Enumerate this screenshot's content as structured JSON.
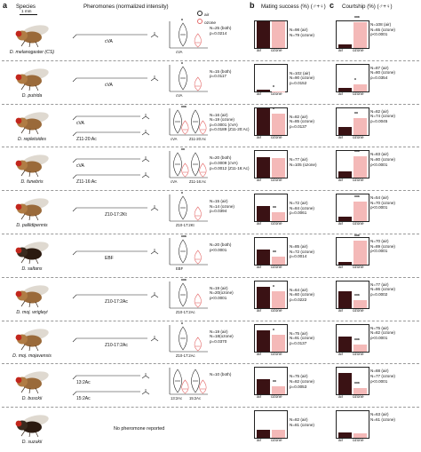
{
  "header": {
    "label_a": "a",
    "label_b": "b",
    "label_c": "c",
    "species_col": "Species",
    "pheromone_col": "Pheromones (normalized intensity)",
    "mating_col": "Mating success (%) (♂+♀)",
    "courtship_col": "Courtship (%) (♂+♀)",
    "scale_bar": "1 mm",
    "legend_air": "air",
    "legend_ozone": "ozone"
  },
  "colors": {
    "air": "#3a1214",
    "ozone": "#f4b9b8",
    "ozone_stroke": "#e46a6a"
  },
  "x_labels": {
    "air": "air",
    "ozone": "ozone"
  },
  "rows": [
    {
      "species": "D. melanogaster (CS)",
      "compounds": [
        "cVA"
      ],
      "violin_labels": [
        "cVA"
      ],
      "ph_stats": [
        "N=25 (both)",
        "p=0.0214"
      ],
      "ph_star": "*",
      "mating_stats": [
        "N=98 (air)",
        "N=79 (ozone)"
      ],
      "mating_star": "",
      "courtship_stats": [
        "N=108 (air)",
        "N=65 (ozone)",
        "p<0.0001"
      ],
      "courtship_star": "***",
      "mating": [
        100,
        100
      ],
      "courtship": [
        15,
        96
      ]
    },
    {
      "species": "D. putrida",
      "compounds": [
        "cVA"
      ],
      "violin_labels": [
        "cVA"
      ],
      "ph_stats": [
        "N=15 (both)",
        "p=0.0117"
      ],
      "ph_star": "*",
      "mating_stats": [
        "N=102 (air)",
        "N=90 (ozone)",
        "p=0.0152"
      ],
      "mating_star": "*",
      "courtship_stats": [
        "N=87 (air)",
        "N=80 (ozone)",
        "p=0.0354"
      ],
      "courtship_star": "*",
      "mating": [
        5,
        1
      ],
      "courtship": [
        12,
        25
      ]
    },
    {
      "species": "D. repletoides",
      "compounds": [
        "cVA",
        "Z11-20:Ac"
      ],
      "violin_labels": [
        "cVA",
        "Z11-20:Ac"
      ],
      "ph_stats": [
        "N=16 (air)",
        "N=19 (ozone)",
        "p=0.0001 (cVA)",
        "p=0.0189 (Z11-20:Ac)"
      ],
      "ph_star": "***",
      "mating_stats": [
        "N=82 (air)",
        "N=85 (ozone)",
        "p=0.0137"
      ],
      "mating_star": "*",
      "courtship_stats": [
        "N=82 (air)",
        "N=74 (ozone)",
        "p=0.0045"
      ],
      "courtship_star": "**",
      "mating": [
        98,
        80
      ],
      "courtship": [
        30,
        62
      ]
    },
    {
      "species": "D. funebris",
      "compounds": [
        "cVA",
        "Z11-16:Ac"
      ],
      "violin_labels": [
        "cVA",
        "Z11-16:Ac"
      ],
      "ph_stats": [
        "N=20 (both)",
        "p=0.0009 (cVA)",
        "p=0.0012 (Z11-16:Ac)"
      ],
      "ph_star": "**",
      "mating_stats": [
        "N=77 (air)",
        "N=105 (ozone)"
      ],
      "mating_star": "",
      "courtship_stats": [
        "N=83 (air)",
        "N=80 (ozone)",
        "p<0.0001"
      ],
      "courtship_star": "***",
      "mating": [
        78,
        76
      ],
      "courtship": [
        25,
        80
      ]
    },
    {
      "species": "D. pallidipennis",
      "compounds": [
        "Z10-17:2Kt"
      ],
      "violin_labels": [
        "Z10-17:2Kt"
      ],
      "ph_stats": [
        "N=15 (air)",
        "N=14 (ozone)",
        "p=0.0394"
      ],
      "ph_star": "*",
      "mating_stats": [
        "N=72 (air)",
        "N=84 (ozone)",
        "p=0.0061"
      ],
      "mating_star": "**",
      "courtship_stats": [
        "N=54 (air)",
        "N=70 (ozone)",
        "p<0.0001"
      ],
      "courtship_star": "***",
      "mating": [
        58,
        35
      ],
      "courtship": [
        18,
        75
      ]
    },
    {
      "species": "D. saltans",
      "compounds": [
        "EBF"
      ],
      "violin_labels": [
        "EBF"
      ],
      "ph_stats": [
        "N=20 (both)",
        "p<0.0001"
      ],
      "ph_star": "***",
      "mating_stats": [
        "N=85 (air)",
        "N=72 (ozone)",
        "p=0.0014"
      ],
      "mating_star": "**",
      "courtship_stats": [
        "N=70 (air)",
        "N=89 (ozone)",
        "p<0.0001"
      ],
      "courtship_star": "***",
      "mating": [
        58,
        30
      ],
      "courtship": [
        10,
        90
      ]
    },
    {
      "species": "D. moj. wrigleyi",
      "compounds": [
        "Z10-17:2Ac"
      ],
      "violin_labels": [
        "Z10-17:2Ac"
      ],
      "ph_stats": [
        "N=19 (air)",
        "N=20(ozone)",
        "p<0.0001"
      ],
      "ph_star": "***",
      "mating_stats": [
        "N=64 (air)",
        "N=60 (ozone)",
        "p=0.0222"
      ],
      "mating_star": "*",
      "courtship_stats": [
        "N=77 (air)",
        "N=86 (ozone)",
        "p=0.0002"
      ],
      "courtship_star": "***",
      "mating": [
        80,
        62
      ],
      "courtship": [
        62,
        30
      ]
    },
    {
      "species": "D. moj. mojavensis",
      "compounds": [
        "Z10-17:2Ac"
      ],
      "violin_labels": [
        "Z10-17:2Ac"
      ],
      "ph_stats": [
        "N=19 (air)",
        "N=18(ozone)",
        "p=0.0370"
      ],
      "ph_star": "*",
      "mating_stats": [
        "N=75 (air)",
        "N=91 (ozone)",
        "p=0.0137"
      ],
      "mating_star": "*",
      "courtship_stats": [
        "N=75 (air)",
        "N=82 (ozone)",
        "p<0.0001"
      ],
      "courtship_star": "***",
      "mating": [
        80,
        62
      ],
      "courtship": [
        55,
        25
      ]
    },
    {
      "species": "D. busckii",
      "compounds": [
        "13:2Ac",
        "15:2Ac"
      ],
      "violin_labels": [
        "13:2Ac",
        "15:2Ac"
      ],
      "ph_stats": [
        "N=10 (both)"
      ],
      "ph_star": "",
      "mating_stats": [
        "N=75 (air)",
        "N=82 (ozone)",
        "p=0.0053"
      ],
      "mating_star": "**",
      "courtship_stats": [
        "N=88 (air)",
        "N=77 (ozone)",
        "p<0.0001"
      ],
      "courtship_star": "***",
      "mating": [
        58,
        30
      ],
      "courtship": [
        80,
        25
      ]
    },
    {
      "species": "D. suzukii",
      "compounds": [],
      "violin_labels": [],
      "no_pheromone": "No pheromone reported",
      "ph_stats": [],
      "ph_star": "",
      "mating_stats": [
        "N=82 (air)",
        "N=81 (ozone)"
      ],
      "mating_star": "",
      "courtship_stats": [
        "N=63 (air)",
        "N=61 (ozone)"
      ],
      "courtship_star": "",
      "mating": [
        30,
        30
      ],
      "courtship": [
        20,
        18
      ]
    }
  ]
}
